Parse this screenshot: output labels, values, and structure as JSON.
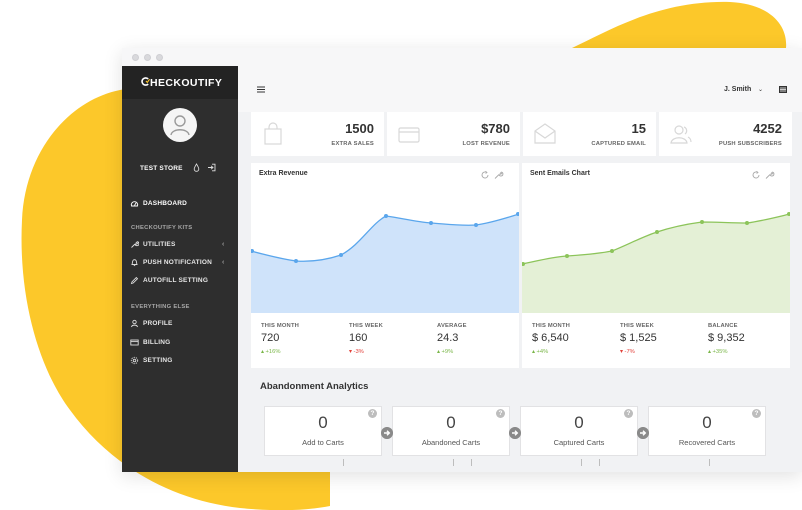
{
  "brand": {
    "name": "HECKOUTIFY"
  },
  "sidebar": {
    "store_name": "TEST STORE",
    "dashboard_label": "DASHBOARD",
    "section_kits": "CHECKOUTIFY KITS",
    "section_else": "EVERYTHING ELSE",
    "items": [
      {
        "label": "UTILITIES",
        "icon": "wrench-icon",
        "has_chevron": true
      },
      {
        "label": "PUSH NOTIFICATION",
        "icon": "bell-icon",
        "has_chevron": true
      },
      {
        "label": "AUTOFILL SETTING",
        "icon": "pencil-icon",
        "has_chevron": false
      },
      {
        "label": "PROFILE",
        "icon": "user-icon",
        "has_chevron": false
      },
      {
        "label": "BILLING",
        "icon": "card-icon",
        "has_chevron": false
      },
      {
        "label": "SETTING",
        "icon": "gear-icon",
        "has_chevron": false
      }
    ]
  },
  "topbar": {
    "user_name": "J. Smith",
    "chevron": "⌄"
  },
  "stats": [
    {
      "value": "1500",
      "label": "EXTRA SALES",
      "icon": "bag-icon"
    },
    {
      "value": "$780",
      "label": "LOST REVENUE",
      "icon": "wallet-icon"
    },
    {
      "value": "15",
      "label": "CAPTURED EMAIL",
      "icon": "envelope-icon"
    },
    {
      "value": "4252",
      "label": "PUSH SUBSCRIBERS",
      "icon": "users-icon"
    }
  ],
  "charts": {
    "revenue": {
      "title": "Extra Revenue",
      "metrics": [
        {
          "label": "THIS MONTH",
          "value": "720",
          "delta": "+16%",
          "dir": "up"
        },
        {
          "label": "THIS WEEK",
          "value": "160",
          "delta": "-3%",
          "dir": "down"
        },
        {
          "label": "AVERAGE",
          "value": "24.3",
          "delta": "+9%",
          "dir": "up"
        }
      ]
    },
    "emails": {
      "title": "Sent Emails Chart",
      "metrics": [
        {
          "label": "THIS MONTH",
          "value": "$ 6,540",
          "delta": "+4%",
          "dir": "up"
        },
        {
          "label": "THIS WEEK",
          "value": "$ 1,525",
          "delta": "-7%",
          "dir": "down"
        },
        {
          "label": "BALANCE",
          "value": "$ 9,352",
          "delta": "+35%",
          "dir": "up"
        }
      ]
    }
  },
  "abandonment": {
    "title": "Abandonment Analytics",
    "help": "?",
    "cards": [
      {
        "value": "0",
        "label": "Add to Carts"
      },
      {
        "value": "0",
        "label": "Abandoned Carts"
      },
      {
        "value": "0",
        "label": "Captured Carts"
      },
      {
        "value": "0",
        "label": "Recovered Carts"
      }
    ]
  },
  "colors": {
    "accent_yellow": "#fcc82a",
    "sidebar_bg": "#2e2e2e",
    "revenue_fill": "#cfe3fa",
    "revenue_line": "#5aa6ec",
    "email_fill": "#e4f0d6",
    "email_line": "#8cc45a",
    "up": "#7ab648",
    "down": "#e2413a"
  }
}
